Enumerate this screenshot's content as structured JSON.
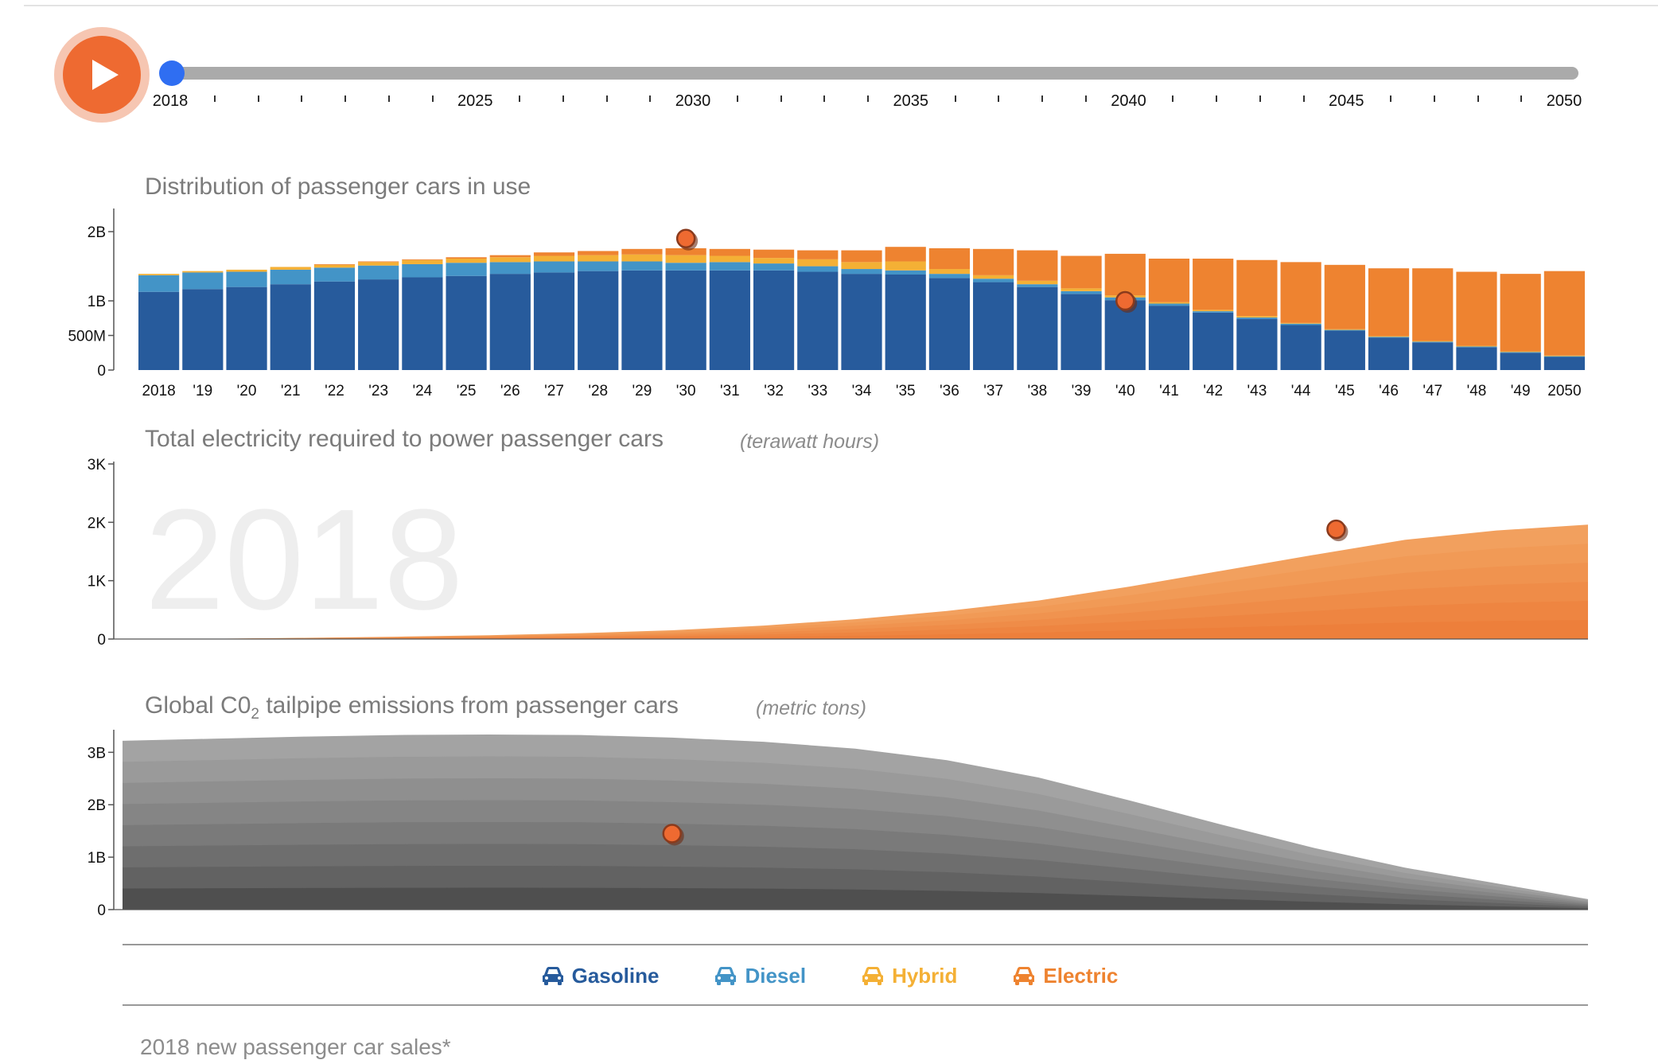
{
  "timeline": {
    "current_year": "2018",
    "labels": [
      {
        "year": 2018,
        "text": "2018"
      },
      {
        "year": 2025,
        "text": "2025"
      },
      {
        "year": 2030,
        "text": "2030"
      },
      {
        "year": 2035,
        "text": "2035"
      },
      {
        "year": 2040,
        "text": "2040"
      },
      {
        "year": 2045,
        "text": "2045"
      },
      {
        "year": 2050,
        "text": "2050"
      }
    ],
    "start_year": 2018,
    "end_year": 2050,
    "play_icon": "play-icon"
  },
  "big_year": "2018",
  "legend": {
    "items": [
      {
        "label": "Gasoline",
        "color": "#275b9c",
        "icon": "car-icon"
      },
      {
        "label": "Diesel",
        "color": "#4394c7",
        "icon": "car-icon"
      },
      {
        "label": "Hybrid",
        "color": "#f4b035",
        "icon": "car-icon"
      },
      {
        "label": "Electric",
        "color": "#ee8330",
        "icon": "car-icon"
      }
    ]
  },
  "footer": {
    "title": "2018 new passenger car sales*"
  },
  "chart_data": [
    {
      "type": "bar",
      "stacked": true,
      "title": "Distribution of passenger cars in use",
      "categories": [
        "2018",
        "'19",
        "'20",
        "'21",
        "'22",
        "'23",
        "'24",
        "'25",
        "'26",
        "'27",
        "'28",
        "'29",
        "'30",
        "'31",
        "'32",
        "'33",
        "'34",
        "'35",
        "'36",
        "'37",
        "'38",
        "'39",
        "'40",
        "'41",
        "'42",
        "'43",
        "'44",
        "'45",
        "'46",
        "'47",
        "'48",
        "'49",
        "2050"
      ],
      "yticks": [
        {
          "v": 0,
          "t": "0"
        },
        {
          "v": 0.5,
          "t": "500M"
        },
        {
          "v": 1,
          "t": "1B"
        },
        {
          "v": 2,
          "t": "2B"
        }
      ],
      "ylim": [
        0,
        2.3
      ],
      "unit": "billion cars",
      "series": [
        {
          "name": "Gasoline",
          "color": "#275b9c",
          "values": [
            1.13,
            1.17,
            1.2,
            1.24,
            1.28,
            1.31,
            1.34,
            1.36,
            1.39,
            1.41,
            1.43,
            1.44,
            1.44,
            1.44,
            1.44,
            1.42,
            1.39,
            1.38,
            1.33,
            1.27,
            1.2,
            1.1,
            1.01,
            0.93,
            0.83,
            0.74,
            0.65,
            0.57,
            0.47,
            0.4,
            0.33,
            0.25,
            0.19
          ]
        },
        {
          "name": "Diesel",
          "color": "#4394c7",
          "values": [
            0.24,
            0.24,
            0.22,
            0.21,
            0.2,
            0.2,
            0.19,
            0.19,
            0.17,
            0.16,
            0.14,
            0.13,
            0.11,
            0.12,
            0.1,
            0.08,
            0.07,
            0.06,
            0.06,
            0.05,
            0.04,
            0.04,
            0.04,
            0.03,
            0.02,
            0.02,
            0.02,
            0.01,
            0.01,
            0.01,
            0.01,
            0.01,
            0.01
          ]
        },
        {
          "name": "Hybrid",
          "color": "#f4b035",
          "values": [
            0.02,
            0.02,
            0.03,
            0.04,
            0.04,
            0.05,
            0.06,
            0.06,
            0.07,
            0.08,
            0.09,
            0.1,
            0.11,
            0.09,
            0.08,
            0.1,
            0.1,
            0.13,
            0.07,
            0.05,
            0.05,
            0.04,
            0.03,
            0.02,
            0.02,
            0.02,
            0.01,
            0.01,
            0.01,
            0.01,
            0.01,
            0.01,
            0.01
          ]
        },
        {
          "name": "Electric",
          "color": "#ee8330",
          "values": [
            0,
            0,
            0,
            0,
            0.01,
            0.01,
            0.01,
            0.02,
            0.03,
            0.05,
            0.06,
            0.08,
            0.1,
            0.1,
            0.12,
            0.13,
            0.17,
            0.21,
            0.3,
            0.38,
            0.44,
            0.47,
            0.6,
            0.63,
            0.74,
            0.81,
            0.88,
            0.93,
            0.98,
            1.05,
            1.07,
            1.12,
            1.22
          ]
        }
      ]
    },
    {
      "type": "area",
      "title": "Total electricity required to power passenger cars",
      "unit_label": "(terawatt hours)",
      "x": [
        2018,
        2050
      ],
      "yticks": [
        {
          "v": 0,
          "t": "0"
        },
        {
          "v": 1000,
          "t": "1K"
        },
        {
          "v": 2000,
          "t": "2K"
        },
        {
          "v": 3000,
          "t": "3K"
        }
      ],
      "ylim": [
        0,
        3000
      ],
      "series": [
        {
          "x": [
            2018,
            2020,
            2022,
            2024,
            2026,
            2028,
            2030,
            2032,
            2034,
            2036,
            2038,
            2040,
            2042,
            2044,
            2046,
            2048,
            2050
          ],
          "values": [
            0,
            5,
            20,
            40,
            65,
            100,
            150,
            230,
            340,
            480,
            660,
            900,
            1170,
            1440,
            1700,
            1860,
            1960
          ]
        }
      ]
    },
    {
      "type": "area",
      "title": "Global C0₂ tailpipe emissions from passenger cars",
      "title_main": "Global C0",
      "title_sub": "2",
      "title_rest": " tailpipe emissions from passenger cars",
      "unit_label": "(metric tons)",
      "x": [
        2018,
        2050
      ],
      "yticks": [
        {
          "v": 0,
          "t": "0"
        },
        {
          "v": 1,
          "t": "1B"
        },
        {
          "v": 2,
          "t": "2B"
        },
        {
          "v": 3,
          "t": "3B"
        }
      ],
      "ylim": [
        0,
        3.4
      ],
      "series": [
        {
          "x": [
            2018,
            2020,
            2022,
            2024,
            2026,
            2028,
            2030,
            2032,
            2034,
            2036,
            2038,
            2040,
            2042,
            2044,
            2046,
            2048,
            2050
          ],
          "values": [
            3.22,
            3.26,
            3.3,
            3.33,
            3.34,
            3.33,
            3.28,
            3.2,
            3.07,
            2.85,
            2.52,
            2.08,
            1.62,
            1.18,
            0.8,
            0.5,
            0.2
          ]
        }
      ]
    }
  ]
}
